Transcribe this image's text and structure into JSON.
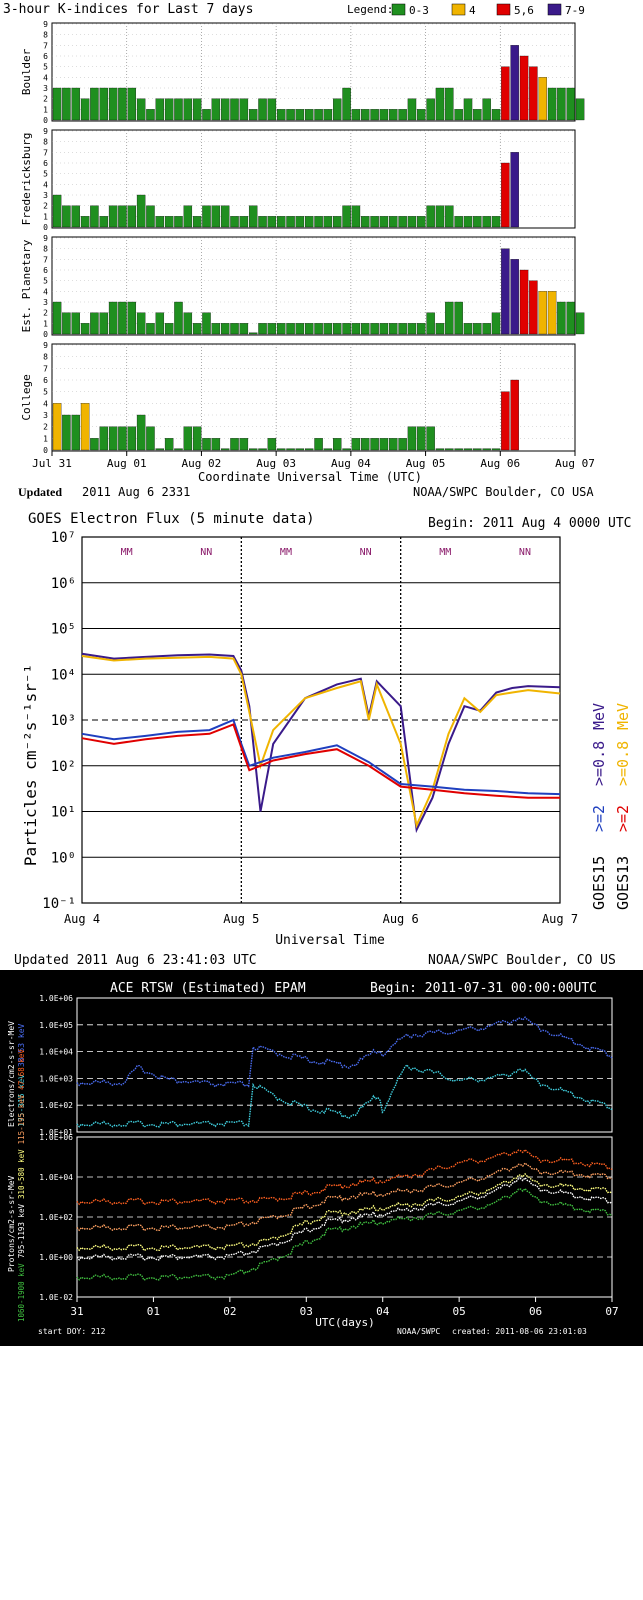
{
  "chart_data": [
    {
      "type": "bar",
      "title": "3-hour K-indices for Last 7 days",
      "legend_label": "Legend:",
      "legend": [
        {
          "label": "0-3",
          "color": "#1f8f1f"
        },
        {
          "label": "4",
          "color": "#f0b400"
        },
        {
          "label": "5,6",
          "color": "#e00000"
        },
        {
          "label": "7-9",
          "color": "#3a1a8a"
        }
      ],
      "xlabel": "Coordinate Universal Time (UTC)",
      "xticks": [
        "Jul 31",
        "Aug 01",
        "Aug 02",
        "Aug 03",
        "Aug 04",
        "Aug 05",
        "Aug 06",
        "Aug 07"
      ],
      "yticks": [
        "0",
        "1",
        "2",
        "3",
        "4",
        "5",
        "6",
        "7",
        "8",
        "9"
      ],
      "ylim": [
        0,
        9
      ],
      "updated_label": "Updated",
      "updated_value": "2011 Aug  6 2331",
      "credit": "NOAA/SWPC Boulder, CO USA",
      "series": [
        {
          "name": "Boulder",
          "values": [
            3,
            3,
            3,
            2,
            3,
            3,
            3,
            3,
            3,
            2,
            1,
            2,
            2,
            2,
            2,
            2,
            1,
            2,
            2,
            2,
            2,
            1,
            2,
            2,
            1,
            1,
            1,
            1,
            1,
            1,
            2,
            3,
            1,
            1,
            1,
            1,
            1,
            1,
            2,
            1,
            2,
            3,
            3,
            1,
            2,
            1,
            2,
            1,
            5,
            7,
            6,
            5,
            4,
            3,
            3,
            3,
            2
          ]
        },
        {
          "name": "Fredericksburg",
          "values": [
            3,
            2,
            2,
            1,
            2,
            1,
            2,
            2,
            2,
            3,
            2,
            1,
            1,
            1,
            2,
            1,
            2,
            2,
            2,
            1,
            1,
            2,
            1,
            1,
            1,
            1,
            1,
            1,
            1,
            1,
            1,
            2,
            2,
            1,
            1,
            1,
            1,
            1,
            1,
            1,
            2,
            2,
            2,
            1,
            1,
            1,
            1,
            1,
            6,
            7
          ]
        },
        {
          "name": "Est. Planetary",
          "values": [
            3,
            2,
            2,
            1,
            2,
            2,
            3,
            3,
            3,
            2,
            1,
            2,
            1,
            3,
            2,
            1,
            2,
            1,
            1,
            1,
            1,
            0,
            1,
            1,
            1,
            1,
            1,
            1,
            1,
            1,
            1,
            1,
            1,
            1,
            1,
            1,
            1,
            1,
            1,
            1,
            2,
            1,
            3,
            3,
            1,
            1,
            1,
            2,
            8,
            7,
            6,
            5,
            4,
            4,
            3,
            3,
            2
          ]
        },
        {
          "name": "College",
          "values": [
            4,
            3,
            3,
            4,
            1,
            2,
            2,
            2,
            2,
            3,
            2,
            0,
            1,
            0,
            2,
            2,
            1,
            1,
            0,
            1,
            1,
            0,
            0,
            1,
            0,
            0,
            0,
            0,
            1,
            0,
            1,
            0,
            1,
            1,
            1,
            1,
            1,
            1,
            2,
            2,
            2,
            0,
            0,
            0,
            0,
            0,
            0,
            0,
            5,
            6
          ]
        }
      ]
    },
    {
      "type": "line",
      "title": "GOES Electron Flux (5 minute data)",
      "begin": "Begin: 2011 Aug 4 0000 UTC",
      "xlabel": "Universal Time",
      "ylabel": "Particles cm⁻²s⁻¹sr⁻¹",
      "xticks": [
        "Aug 4",
        "Aug 5",
        "Aug 6",
        "Aug 7"
      ],
      "yticks": [
        "10⁷",
        "10⁶",
        "10⁵",
        "10⁴",
        "10³",
        "10²",
        "10¹",
        "10⁰",
        "10⁻¹"
      ],
      "ylim": [
        0.1,
        10000000
      ],
      "yscale": "log",
      "markers": [
        {
          "label": "MM",
          "day": 0.28
        },
        {
          "label": "NN",
          "day": 0.78
        },
        {
          "label": "MM",
          "day": 1.28
        },
        {
          "label": "NN",
          "day": 1.78
        },
        {
          "label": "MM",
          "day": 2.28
        },
        {
          "label": "NN",
          "day": 2.78
        }
      ],
      "series": [
        {
          "name": "GOES15 >=0.8 MeV",
          "color": "#3a1a8a",
          "x": [
            0,
            0.2,
            0.4,
            0.6,
            0.8,
            0.95,
            1.0,
            1.05,
            1.12,
            1.2,
            1.4,
            1.6,
            1.75,
            1.8,
            1.85,
            2.0,
            2.1,
            2.2,
            2.3,
            2.4,
            2.5,
            2.6,
            2.7,
            2.8,
            3.0
          ],
          "values": [
            28000,
            22000,
            24000,
            26000,
            27000,
            25000,
            12000,
            2000,
            10,
            300,
            3000,
            6000,
            8000,
            1200,
            7000,
            2000,
            4,
            20,
            300,
            2000,
            1600,
            4000,
            5000,
            5500,
            5200
          ]
        },
        {
          "name": "GOES13 >=0.8 MeV",
          "color": "#f0b400",
          "x": [
            0,
            0.2,
            0.4,
            0.6,
            0.8,
            0.95,
            1.0,
            1.05,
            1.12,
            1.2,
            1.4,
            1.6,
            1.75,
            1.8,
            1.85,
            2.0,
            2.1,
            2.2,
            2.3,
            2.4,
            2.5,
            2.6,
            2.7,
            2.8,
            3.0
          ],
          "values": [
            25000,
            20000,
            22000,
            23000,
            24000,
            22000,
            10000,
            1500,
            100,
            600,
            3000,
            5000,
            7000,
            1000,
            6000,
            300,
            5,
            30,
            500,
            3000,
            1500,
            3500,
            4000,
            4500,
            3800
          ]
        },
        {
          "name": "GOES15 >=2 MeV",
          "color": "#1f3fbf",
          "x": [
            0,
            0.2,
            0.4,
            0.6,
            0.8,
            0.95,
            1.0,
            1.05,
            1.12,
            1.2,
            1.4,
            1.6,
            1.8,
            2.0,
            2.2,
            2.4,
            2.6,
            2.8,
            3.0
          ],
          "values": [
            500,
            380,
            450,
            550,
            600,
            1000,
            300,
            100,
            120,
            150,
            200,
            280,
            120,
            40,
            35,
            30,
            28,
            25,
            24
          ]
        },
        {
          "name": "GOES13 >=2 MeV",
          "color": "#e00000",
          "x": [
            0,
            0.2,
            0.4,
            0.6,
            0.8,
            0.95,
            1.0,
            1.05,
            1.12,
            1.2,
            1.4,
            1.6,
            1.8,
            2.0,
            2.2,
            2.4,
            2.6,
            2.8,
            3.0
          ],
          "values": [
            400,
            300,
            380,
            450,
            500,
            800,
            250,
            80,
            100,
            130,
            180,
            230,
            100,
            35,
            30,
            25,
            22,
            20,
            20
          ]
        }
      ],
      "right_labels": [
        {
          "sat": "GOES15",
          "a": ">=2",
          "b": ">=0.8",
          "unit": "MeV",
          "color_a": "#1f3fbf",
          "color_b": "#3a1a8a"
        },
        {
          "sat": "GOES13",
          "a": ">=2",
          "b": ">=0.8",
          "unit": "MeV",
          "color_a": "#e00000",
          "color_b": "#f0b400"
        }
      ],
      "updated": "Updated 2011 Aug  6 23:41:03 UTC",
      "credit": "NOAA/SWPC Boulder, CO US"
    },
    {
      "type": "scatter",
      "title": "ACE RTSW (Estimated) EPAM",
      "begin": "Begin: 2011-07-31 00:00:00UTC",
      "xlabel": "UTC(days)",
      "xticks": [
        "31",
        "01",
        "02",
        "03",
        "04",
        "05",
        "06",
        "07"
      ],
      "electron_yticks": [
        "1.0E+06",
        "1.0E+05",
        "1.0E+04",
        "1.0E+03",
        "1.0E+02",
        "1.0E+01"
      ],
      "proton_yticks": [
        "1.0E+06",
        "1.0E+04",
        "1.0E+02",
        "1.0E+00",
        "1.0E-02"
      ],
      "electron_ylabel": "Electrons/cm2-s-sr-MeV",
      "proton_ylabel": "Protons/cm2-s-sr-MeV",
      "electron_channels": [
        {
          "name": "38-53 keV",
          "color": "#4a6cf0",
          "x": [
            0,
            0.6,
            0.8,
            1.2,
            1.8,
            2.25,
            2.3,
            2.6,
            3.0,
            3.6,
            3.95,
            4.0,
            4.3,
            4.7,
            5.0,
            5.3,
            5.6,
            5.8,
            6.0,
            6.4,
            7.0
          ],
          "values": [
            700,
            700,
            2500,
            900,
            600,
            600,
            15000,
            9000,
            5000,
            3000,
            12000,
            8000,
            40000,
            50000,
            60000,
            80000,
            120000,
            200000,
            90000,
            30000,
            7000
          ]
        },
        {
          "name": "175-315 keV",
          "color": "#40d0e0",
          "x": [
            0,
            0.6,
            1.2,
            1.8,
            2.25,
            2.3,
            2.6,
            3.0,
            3.6,
            3.95,
            4.0,
            4.3,
            4.7,
            5.0,
            5.3,
            5.6,
            5.8,
            6.0,
            6.4,
            7.0
          ],
          "values": [
            20,
            20,
            20,
            20,
            20,
            600,
            200,
            80,
            40,
            250,
            60,
            3000,
            1500,
            800,
            1000,
            1200,
            2500,
            800,
            300,
            80
          ]
        }
      ],
      "proton_channels": [
        {
          "name": "47-68 keV",
          "color": "#ff6020",
          "x": [
            0,
            0.5,
            1.0,
            1.5,
            2.0,
            2.5,
            3.0,
            3.3,
            3.7,
            4.0,
            4.5,
            5.0,
            5.5,
            5.8,
            6.0,
            6.5,
            7.0
          ],
          "values": [
            600,
            600,
            600,
            600,
            600,
            700,
            1500,
            3000,
            5000,
            7000,
            15000,
            50000,
            100000,
            250000,
            80000,
            60000,
            30000
          ]
        },
        {
          "name": "115-195 keV",
          "color": "#ffa060",
          "x": [
            0,
            0.5,
            1.0,
            1.5,
            2.0,
            2.5,
            3.0,
            3.3,
            3.7,
            4.0,
            4.5,
            5.0,
            5.5,
            5.8,
            6.0,
            6.5,
            7.0
          ],
          "values": [
            30,
            30,
            30,
            30,
            30,
            80,
            300,
            800,
            1200,
            1500,
            2500,
            5000,
            15000,
            50000,
            20000,
            15000,
            10000
          ]
        },
        {
          "name": "310-580 keV",
          "color": "#ffff80",
          "x": [
            0,
            0.5,
            1.0,
            1.5,
            2.0,
            2.5,
            3.0,
            3.3,
            3.7,
            4.0,
            4.5,
            5.0,
            5.5,
            5.8,
            6.0,
            6.5,
            7.0
          ],
          "values": [
            3,
            3,
            3,
            3,
            3,
            6,
            50,
            150,
            200,
            300,
            500,
            1000,
            3000,
            15000,
            5000,
            3000,
            2000
          ]
        },
        {
          "name": "795-1193 keV",
          "color": "#ffffff",
          "x": [
            0,
            0.5,
            1.0,
            1.5,
            2.0,
            2.5,
            3.0,
            3.3,
            3.7,
            4.0,
            4.5,
            5.0,
            5.5,
            5.8,
            6.0,
            6.5,
            7.0
          ],
          "values": [
            1,
            1,
            1,
            1,
            1,
            3,
            20,
            60,
            100,
            150,
            300,
            600,
            2000,
            10000,
            3000,
            1200,
            600
          ]
        },
        {
          "name": "1060-1900 keV",
          "color": "#40c040",
          "x": [
            0,
            0.5,
            1.0,
            1.5,
            2.0,
            2.5,
            3.0,
            3.3,
            3.7,
            4.0,
            4.5,
            5.0,
            5.5,
            5.8,
            6.0,
            6.5,
            7.0
          ],
          "values": [
            0.1,
            0.1,
            0.1,
            0.1,
            0.1,
            0.5,
            5,
            20,
            40,
            60,
            100,
            200,
            500,
            3000,
            800,
            300,
            150
          ]
        }
      ],
      "start_doy": "start DOY:  212",
      "credit": "NOAA/SWPC",
      "created": "created:   2011-08-06 23:01:03"
    }
  ]
}
